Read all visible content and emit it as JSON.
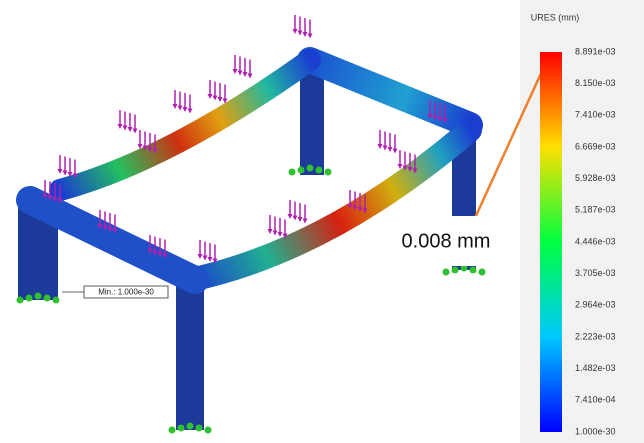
{
  "legend": {
    "title": "URES (mm)",
    "ticks": [
      "8.891e-03",
      "8.150e-03",
      "7.410e-03",
      "6.669e-03",
      "5.928e-03",
      "5.187e-03",
      "4.446e-03",
      "3.705e-03",
      "2.964e-03",
      "2.223e-03",
      "1.482e-03",
      "7.410e-04",
      "1.000e-30"
    ]
  },
  "annotations": {
    "max_callout": "0.008 mm",
    "min_label": "Min.: 1.000e-30"
  }
}
